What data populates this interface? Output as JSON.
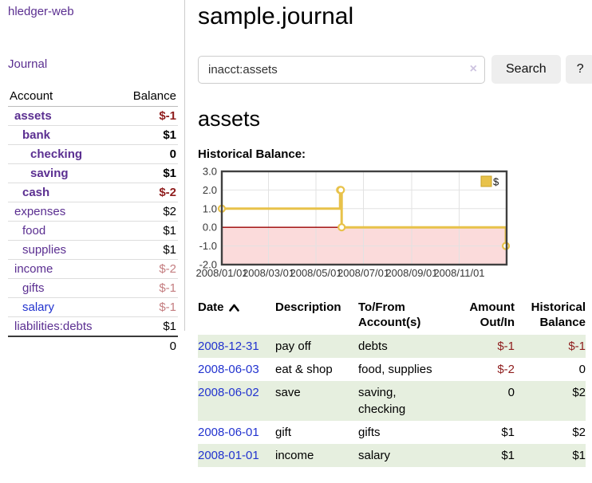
{
  "colors": {
    "link_purple": "#5b2f91",
    "link_blue": "#2233cf",
    "negative_red": "#8f1d1d",
    "dim_negative_red": "#c47d80",
    "row_stripe_green": "#e6efdf",
    "chart_line_gold": "#e8c24a",
    "chart_negative_region_pink": "#fbdbdb",
    "chart_zero_line_red": "#9b0000",
    "chart_grid_gray": "#e2e2e2",
    "chart_border_gray": "#404040"
  },
  "sidebar": {
    "brand": "hledger-web",
    "journal_link": "Journal",
    "accounts_table": {
      "account_header": "Account",
      "balance_header": "Balance",
      "rows": [
        {
          "name": "assets",
          "indent": 1,
          "bold": true,
          "balance": "$-1",
          "balance_style": "neg"
        },
        {
          "name": "bank",
          "indent": 2,
          "bold": true,
          "balance": "$1",
          "balance_style": "pos"
        },
        {
          "name": "checking",
          "indent": 3,
          "bold": true,
          "balance": "0",
          "balance_style": "pos"
        },
        {
          "name": "saving",
          "indent": 3,
          "bold": true,
          "balance": "$1",
          "balance_style": "pos"
        },
        {
          "name": "cash",
          "indent": 2,
          "bold": true,
          "balance": "$-2",
          "balance_style": "neg"
        },
        {
          "name": "expenses",
          "indent": 1,
          "bold": false,
          "balance": "$2",
          "balance_style": "pos"
        },
        {
          "name": "food",
          "indent": 2,
          "bold": false,
          "balance": "$1",
          "balance_style": "pos"
        },
        {
          "name": "supplies",
          "indent": 2,
          "bold": false,
          "balance": "$1",
          "balance_style": "pos"
        },
        {
          "name": "income",
          "indent": 1,
          "bold": false,
          "balance": "$-2",
          "balance_style": "dimneg"
        },
        {
          "name": "gifts",
          "indent": 2,
          "bold": false,
          "balance": "$-1",
          "balance_style": "dimneg"
        },
        {
          "name": "salary",
          "indent": 2,
          "bold": false,
          "link_color": "blue",
          "balance": "$-1",
          "balance_style": "dimneg"
        },
        {
          "name": "liabilities:debts",
          "indent": 1,
          "bold": false,
          "balance": "$1",
          "balance_style": "pos"
        }
      ],
      "total": "0"
    }
  },
  "main": {
    "title": "sample.journal",
    "search": {
      "value": "inacct:assets",
      "clear_icon": "×",
      "search_button": "Search",
      "help_button": "?"
    },
    "account_heading": "assets",
    "chart_title": "Historical Balance:"
  },
  "chart_data": {
    "type": "line",
    "title": "Historical Balance:",
    "step": true,
    "legend": [
      {
        "label": "$",
        "color": "#e8c24a"
      }
    ],
    "legend_position": "top-right",
    "grid": true,
    "ylim": [
      -2.0,
      3.0
    ],
    "y_ticks": [
      {
        "label": "3.0",
        "value": 3
      },
      {
        "label": "2.0",
        "value": 2
      },
      {
        "label": "1.0",
        "value": 1
      },
      {
        "label": "0.0",
        "value": 0
      },
      {
        "label": "-1.0",
        "value": -1
      },
      {
        "label": "-2.0",
        "value": -2
      }
    ],
    "x_domain_days": [
      0,
      366
    ],
    "x_ticks": [
      {
        "label": "2008/01/01",
        "day": 0
      },
      {
        "label": "2008/03/01",
        "day": 60
      },
      {
        "label": "2008/05/01",
        "day": 121
      },
      {
        "label": "2008/07/01",
        "day": 182
      },
      {
        "label": "2008/09/01",
        "day": 244
      },
      {
        "label": "2008/11/01",
        "day": 305
      }
    ],
    "series": [
      {
        "name": "$",
        "points": [
          {
            "date": "2008-01-01",
            "day": 0,
            "value": 1
          },
          {
            "date": "2008-06-01",
            "day": 152,
            "value": 2
          },
          {
            "date": "2008-06-02",
            "day": 153,
            "value": 2
          },
          {
            "date": "2008-06-03",
            "day": 154,
            "value": 0
          },
          {
            "date": "2008-12-31",
            "day": 365,
            "value": -1
          }
        ]
      }
    ]
  },
  "register_table": {
    "headers": {
      "date": {
        "line1": "Date",
        "line2": ""
      },
      "description": {
        "line1": "Description",
        "line2": ""
      },
      "accounts": {
        "line1": "To/From",
        "line2": "Account(s)"
      },
      "amount": {
        "line1": "Amount",
        "line2": "Out/In"
      },
      "balance": {
        "line1": "Historical",
        "line2": "Balance"
      }
    },
    "sort": {
      "column": "date",
      "direction": "ascending"
    },
    "rows": [
      {
        "date": "2008-12-31",
        "description": "pay off",
        "accounts": "debts",
        "amount": "$-1",
        "amount_neg": true,
        "balance": "$-1",
        "balance_neg": true
      },
      {
        "date": "2008-06-03",
        "description": "eat & shop",
        "accounts": "food, supplies",
        "amount": "$-2",
        "amount_neg": true,
        "balance": "0",
        "balance_neg": false
      },
      {
        "date": "2008-06-02",
        "description": "save",
        "accounts": "saving, checking",
        "amount": "0",
        "amount_neg": false,
        "balance": "$2",
        "balance_neg": false
      },
      {
        "date": "2008-06-01",
        "description": "gift",
        "accounts": "gifts",
        "amount": "$1",
        "amount_neg": false,
        "balance": "$2",
        "balance_neg": false
      },
      {
        "date": "2008-01-01",
        "description": "income",
        "accounts": "salary",
        "amount": "$1",
        "amount_neg": false,
        "balance": "$1",
        "balance_neg": false
      }
    ]
  }
}
